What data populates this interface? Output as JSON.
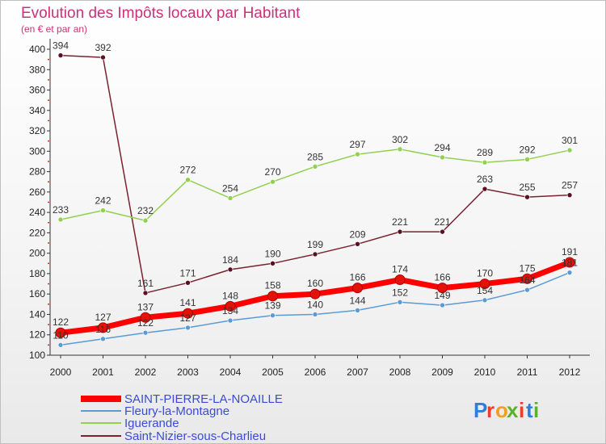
{
  "chart_data": {
    "type": "line",
    "title": "Evolution des Impôts locaux par Habitant",
    "subtitle": "(en € et par an)",
    "x": [
      "2000",
      "2001",
      "2002",
      "2003",
      "2004",
      "2005",
      "2006",
      "2007",
      "2008",
      "2009",
      "2010",
      "2011",
      "2012"
    ],
    "ylim": [
      100,
      400
    ],
    "yticks": [
      100,
      120,
      140,
      160,
      180,
      200,
      220,
      240,
      260,
      280,
      300,
      320,
      340,
      360,
      380,
      400
    ],
    "grid": false,
    "legend_position": "bottom-left",
    "series": [
      {
        "name": "SAINT-PIERRE-LA-NOAILLE",
        "color": "#ff0000",
        "values": [
          122,
          127,
          137,
          141,
          148,
          158,
          160,
          166,
          174,
          166,
          170,
          175,
          191
        ],
        "labels": [
          "122",
          "127",
          "137",
          "141",
          "148",
          "158",
          "160",
          "166",
          "174",
          "166",
          "170",
          "175",
          "191"
        ]
      },
      {
        "name": "Fleury-la-Montagne",
        "color": "#5b9bd5",
        "values": [
          110,
          116,
          122,
          127,
          134,
          139,
          140,
          144,
          152,
          149,
          154,
          164,
          181
        ],
        "labels": [
          "110",
          "116",
          "122",
          "127",
          "134",
          "139",
          "140",
          "144",
          "152",
          "149",
          "154",
          "164",
          "181"
        ]
      },
      {
        "name": "Iguerande",
        "color": "#92d050",
        "values": [
          233,
          242,
          232,
          272,
          254,
          270,
          285,
          297,
          302,
          294,
          289,
          292,
          301
        ],
        "labels": [
          "233",
          "242",
          "232",
          "272",
          "254",
          "270",
          "285",
          "297",
          "302",
          "294",
          "289",
          "292",
          "301"
        ]
      },
      {
        "name": "Saint-Nizier-sous-Charlieu",
        "color": "#7a2230",
        "values": [
          394,
          392,
          161,
          171,
          184,
          190,
          199,
          209,
          221,
          221,
          263,
          255,
          257
        ],
        "labels": [
          "394",
          "392",
          "161",
          "171",
          "184",
          "190",
          "199",
          "209",
          "221",
          "221",
          "263",
          "255",
          "257"
        ]
      }
    ]
  },
  "watermark": "Proxiti"
}
